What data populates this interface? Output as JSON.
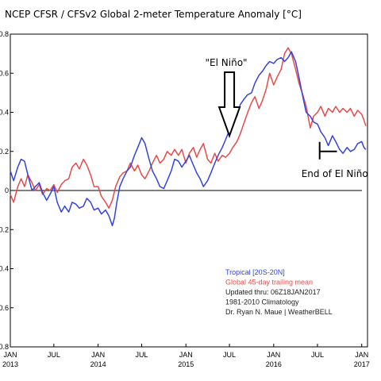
{
  "chart_data": {
    "type": "line",
    "title": "NCEP CFSR / CFSv2 Global 2-meter Temperature Anomaly [°C]",
    "xlabel": "",
    "ylabel": "",
    "x_range": [
      "2013-01-01",
      "2017-01-25"
    ],
    "ylim": [
      -0.8,
      0.8
    ],
    "y_ticks": [
      "0.8",
      "0.6",
      "0.4",
      "0.2",
      "0",
      "-0.2",
      "-0.4",
      "-0.6",
      "-0.8"
    ],
    "y_tick_values": [
      0.8,
      0.6,
      0.4,
      0.2,
      0,
      -0.2,
      -0.4,
      -0.6,
      -0.8
    ],
    "x_ticks": [
      {
        "date": "2013-01-01",
        "line1": "JAN",
        "line2": "2013"
      },
      {
        "date": "2013-07-01",
        "line1": "JUL",
        "line2": ""
      },
      {
        "date": "2014-01-01",
        "line1": "JAN",
        "line2": "2014"
      },
      {
        "date": "2014-07-01",
        "line1": "JUL",
        "line2": ""
      },
      {
        "date": "2015-01-01",
        "line1": "JAN",
        "line2": "2015"
      },
      {
        "date": "2015-07-01",
        "line1": "JUL",
        "line2": ""
      },
      {
        "date": "2016-01-01",
        "line1": "JAN",
        "line2": "2016"
      },
      {
        "date": "2016-07-01",
        "line1": "JUL",
        "line2": ""
      },
      {
        "date": "2017-01-01",
        "line1": "JAN",
        "line2": "2017"
      }
    ],
    "grid": false,
    "zero_line": true,
    "series": [
      {
        "name": "Tropical [20S-20N]",
        "color": "#3344dd",
        "points": [
          [
            "2013-01-01",
            0.1
          ],
          [
            "2013-01-15",
            0.05
          ],
          [
            "2013-02-01",
            0.12
          ],
          [
            "2013-02-15",
            0.16
          ],
          [
            "2013-03-01",
            0.15
          ],
          [
            "2013-03-15",
            0.08
          ],
          [
            "2013-04-01",
            0.0
          ],
          [
            "2013-04-15",
            0.02
          ],
          [
            "2013-05-01",
            0.04
          ],
          [
            "2013-05-15",
            -0.01
          ],
          [
            "2013-06-01",
            -0.05
          ],
          [
            "2013-06-15",
            -0.02
          ],
          [
            "2013-07-01",
            0.02
          ],
          [
            "2013-07-15",
            -0.06
          ],
          [
            "2013-08-01",
            -0.11
          ],
          [
            "2013-08-15",
            -0.08
          ],
          [
            "2013-09-01",
            -0.11
          ],
          [
            "2013-09-15",
            -0.06
          ],
          [
            "2013-10-01",
            -0.07
          ],
          [
            "2013-10-15",
            -0.09
          ],
          [
            "2013-11-01",
            -0.08
          ],
          [
            "2013-11-15",
            -0.04
          ],
          [
            "2013-12-01",
            -0.06
          ],
          [
            "2013-12-15",
            -0.1
          ],
          [
            "2014-01-01",
            -0.09
          ],
          [
            "2014-01-15",
            -0.12
          ],
          [
            "2014-02-01",
            -0.1
          ],
          [
            "2014-02-15",
            -0.13
          ],
          [
            "2014-03-01",
            -0.18
          ],
          [
            "2014-03-10",
            -0.14
          ],
          [
            "2014-03-20",
            -0.06
          ],
          [
            "2014-04-01",
            0.02
          ],
          [
            "2014-04-15",
            0.06
          ],
          [
            "2014-05-01",
            0.1
          ],
          [
            "2014-05-15",
            0.12
          ],
          [
            "2014-06-01",
            0.18
          ],
          [
            "2014-06-15",
            0.22
          ],
          [
            "2014-07-01",
            0.27
          ],
          [
            "2014-07-15",
            0.24
          ],
          [
            "2014-08-01",
            0.16
          ],
          [
            "2014-08-15",
            0.1
          ],
          [
            "2014-09-01",
            0.06
          ],
          [
            "2014-09-15",
            0.02
          ],
          [
            "2014-10-01",
            0.01
          ],
          [
            "2014-10-15",
            0.05
          ],
          [
            "2014-11-01",
            0.1
          ],
          [
            "2014-11-15",
            0.16
          ],
          [
            "2014-12-01",
            0.15
          ],
          [
            "2014-12-15",
            0.12
          ],
          [
            "2015-01-01",
            0.15
          ],
          [
            "2015-01-15",
            0.18
          ],
          [
            "2015-02-01",
            0.13
          ],
          [
            "2015-02-15",
            0.09
          ],
          [
            "2015-03-01",
            0.06
          ],
          [
            "2015-03-15",
            0.02
          ],
          [
            "2015-04-01",
            0.05
          ],
          [
            "2015-04-15",
            0.09
          ],
          [
            "2015-05-01",
            0.14
          ],
          [
            "2015-05-15",
            0.18
          ],
          [
            "2015-06-01",
            0.22
          ],
          [
            "2015-06-15",
            0.26
          ],
          [
            "2015-07-01",
            0.31
          ],
          [
            "2015-07-15",
            0.35
          ],
          [
            "2015-08-01",
            0.38
          ],
          [
            "2015-08-15",
            0.44
          ],
          [
            "2015-09-01",
            0.47
          ],
          [
            "2015-09-15",
            0.49
          ],
          [
            "2015-10-01",
            0.5
          ],
          [
            "2015-10-15",
            0.55
          ],
          [
            "2015-11-01",
            0.59
          ],
          [
            "2015-11-15",
            0.61
          ],
          [
            "2015-12-01",
            0.64
          ],
          [
            "2015-12-15",
            0.66
          ],
          [
            "2016-01-01",
            0.65
          ],
          [
            "2016-01-15",
            0.67
          ],
          [
            "2016-02-01",
            0.68
          ],
          [
            "2016-02-15",
            0.66
          ],
          [
            "2016-03-01",
            0.68
          ],
          [
            "2016-03-15",
            0.71
          ],
          [
            "2016-04-01",
            0.66
          ],
          [
            "2016-04-15",
            0.58
          ],
          [
            "2016-05-01",
            0.48
          ],
          [
            "2016-05-15",
            0.4
          ],
          [
            "2016-06-01",
            0.38
          ],
          [
            "2016-06-15",
            0.35
          ],
          [
            "2016-07-01",
            0.34
          ],
          [
            "2016-07-15",
            0.3
          ],
          [
            "2016-08-01",
            0.27
          ],
          [
            "2016-08-15",
            0.23
          ],
          [
            "2016-09-01",
            0.28
          ],
          [
            "2016-09-15",
            0.25
          ],
          [
            "2016-10-01",
            0.21
          ],
          [
            "2016-10-15",
            0.19
          ],
          [
            "2016-11-01",
            0.22
          ],
          [
            "2016-11-15",
            0.2
          ],
          [
            "2016-12-01",
            0.21
          ],
          [
            "2016-12-15",
            0.24
          ],
          [
            "2017-01-01",
            0.25
          ],
          [
            "2017-01-10",
            0.22
          ],
          [
            "2017-01-18",
            0.21
          ]
        ]
      },
      {
        "name": "Global 45-day trailing mean",
        "color": "#e84a4a",
        "points": [
          [
            "2013-01-01",
            -0.02
          ],
          [
            "2013-01-15",
            -0.06
          ],
          [
            "2013-02-01",
            0.02
          ],
          [
            "2013-02-15",
            0.06
          ],
          [
            "2013-03-01",
            0.02
          ],
          [
            "2013-03-15",
            0.08
          ],
          [
            "2013-04-01",
            0.04
          ],
          [
            "2013-04-15",
            0.0
          ],
          [
            "2013-05-01",
            0.03
          ],
          [
            "2013-05-15",
            -0.02
          ],
          [
            "2013-06-01",
            0.01
          ],
          [
            "2013-06-15",
            0.0
          ],
          [
            "2013-07-01",
            0.03
          ],
          [
            "2013-07-15",
            -0.01
          ],
          [
            "2013-08-01",
            0.03
          ],
          [
            "2013-08-15",
            0.05
          ],
          [
            "2013-09-01",
            0.06
          ],
          [
            "2013-09-15",
            0.12
          ],
          [
            "2013-10-01",
            0.14
          ],
          [
            "2013-10-15",
            0.11
          ],
          [
            "2013-11-01",
            0.16
          ],
          [
            "2013-11-15",
            0.13
          ],
          [
            "2013-12-01",
            0.08
          ],
          [
            "2013-12-15",
            0.02
          ],
          [
            "2014-01-01",
            0.02
          ],
          [
            "2014-01-15",
            -0.03
          ],
          [
            "2014-02-01",
            -0.06
          ],
          [
            "2014-02-15",
            -0.09
          ],
          [
            "2014-03-01",
            -0.05
          ],
          [
            "2014-03-15",
            0.02
          ],
          [
            "2014-04-01",
            0.07
          ],
          [
            "2014-04-15",
            0.09
          ],
          [
            "2014-05-01",
            0.1
          ],
          [
            "2014-05-15",
            0.14
          ],
          [
            "2014-06-01",
            0.1
          ],
          [
            "2014-06-15",
            0.13
          ],
          [
            "2014-07-01",
            0.08
          ],
          [
            "2014-07-15",
            0.06
          ],
          [
            "2014-08-01",
            0.1
          ],
          [
            "2014-08-15",
            0.14
          ],
          [
            "2014-09-01",
            0.18
          ],
          [
            "2014-09-15",
            0.14
          ],
          [
            "2014-10-01",
            0.16
          ],
          [
            "2014-10-15",
            0.2
          ],
          [
            "2014-11-01",
            0.18
          ],
          [
            "2014-11-15",
            0.21
          ],
          [
            "2014-12-01",
            0.18
          ],
          [
            "2014-12-15",
            0.21
          ],
          [
            "2015-01-01",
            0.14
          ],
          [
            "2015-01-15",
            0.19
          ],
          [
            "2015-02-01",
            0.22
          ],
          [
            "2015-02-15",
            0.17
          ],
          [
            "2015-03-01",
            0.21
          ],
          [
            "2015-03-15",
            0.24
          ],
          [
            "2015-04-01",
            0.16
          ],
          [
            "2015-04-15",
            0.14
          ],
          [
            "2015-05-01",
            0.19
          ],
          [
            "2015-05-15",
            0.15
          ],
          [
            "2015-06-01",
            0.18
          ],
          [
            "2015-06-15",
            0.17
          ],
          [
            "2015-07-01",
            0.19
          ],
          [
            "2015-07-15",
            0.22
          ],
          [
            "2015-08-01",
            0.25
          ],
          [
            "2015-08-15",
            0.29
          ],
          [
            "2015-09-01",
            0.35
          ],
          [
            "2015-09-15",
            0.4
          ],
          [
            "2015-10-01",
            0.45
          ],
          [
            "2015-10-15",
            0.48
          ],
          [
            "2015-11-01",
            0.42
          ],
          [
            "2015-11-15",
            0.46
          ],
          [
            "2015-12-01",
            0.52
          ],
          [
            "2015-12-15",
            0.6
          ],
          [
            "2016-01-01",
            0.54
          ],
          [
            "2016-01-15",
            0.58
          ],
          [
            "2016-02-01",
            0.62
          ],
          [
            "2016-02-15",
            0.7
          ],
          [
            "2016-03-01",
            0.73
          ],
          [
            "2016-03-15",
            0.7
          ],
          [
            "2016-04-01",
            0.62
          ],
          [
            "2016-04-15",
            0.55
          ],
          [
            "2016-05-01",
            0.49
          ],
          [
            "2016-05-15",
            0.43
          ],
          [
            "2016-06-01",
            0.32
          ],
          [
            "2016-06-15",
            0.38
          ],
          [
            "2016-07-01",
            0.4
          ],
          [
            "2016-07-15",
            0.43
          ],
          [
            "2016-08-01",
            0.38
          ],
          [
            "2016-08-15",
            0.42
          ],
          [
            "2016-09-01",
            0.4
          ],
          [
            "2016-09-15",
            0.43
          ],
          [
            "2016-10-01",
            0.4
          ],
          [
            "2016-10-15",
            0.42
          ],
          [
            "2016-11-01",
            0.4
          ],
          [
            "2016-11-15",
            0.42
          ],
          [
            "2016-12-01",
            0.38
          ],
          [
            "2016-12-15",
            0.41
          ],
          [
            "2017-01-01",
            0.39
          ],
          [
            "2017-01-10",
            0.36
          ],
          [
            "2017-01-18",
            0.33
          ]
        ]
      }
    ],
    "legend": {
      "placement": "lower-right",
      "lines": [
        {
          "text": "Tropical [20S-20N]",
          "color": "#3344dd"
        },
        {
          "text": "Global 45-day trailing mean",
          "color": "#e84a4a"
        },
        {
          "text": "Updated thru: 06Z18JAN2017",
          "color": "#222222"
        },
        {
          "text": "1981-2010 Climatology",
          "color": "#222222"
        },
        {
          "text": "Dr. Ryan N. Maue | WeatherBELL",
          "color": "#222222"
        }
      ]
    },
    "annotations": [
      {
        "text": "\"El Niño\"",
        "type": "down-arrow",
        "date": "2015-07-01",
        "value": 0.28
      },
      {
        "text": "End of El Niño",
        "type": "marker-line",
        "date_start": "2016-07-10",
        "date_end": "2016-09-20",
        "value": 0.2
      }
    ]
  }
}
